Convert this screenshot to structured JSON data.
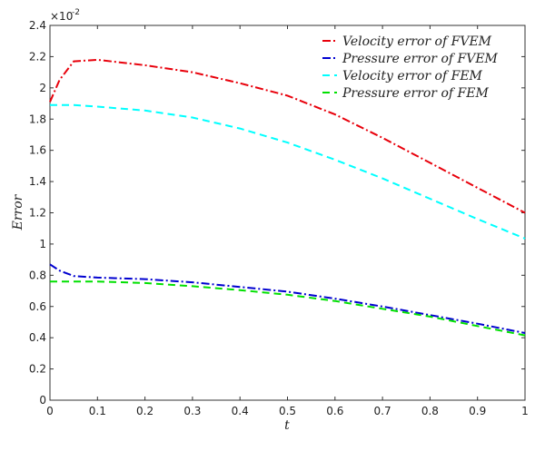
{
  "chart_data": {
    "type": "line",
    "y_label": "Error",
    "x_label": "t",
    "y_scale_base": "×10",
    "y_scale_exponent": "-2",
    "x": [
      0,
      0.02,
      0.05,
      0.1,
      0.2,
      0.3,
      0.4,
      0.5,
      0.6,
      0.7,
      0.8,
      0.9,
      1
    ],
    "series": [
      {
        "name": "Velocity error of FVEM",
        "color": "#e8000b",
        "style": "dashdot",
        "values": [
          1.91,
          2.05,
          2.17,
          2.18,
          2.145,
          2.1,
          2.03,
          1.95,
          1.83,
          1.68,
          1.52,
          1.36,
          1.2
        ]
      },
      {
        "name": "Pressure error of FVEM",
        "color": "#0000d0",
        "style": "dashdot",
        "values": [
          0.87,
          0.83,
          0.795,
          0.785,
          0.775,
          0.755,
          0.725,
          0.695,
          0.65,
          0.6,
          0.545,
          0.49,
          0.43
        ]
      },
      {
        "name": "Velocity error of FEM",
        "color": "#00ffff",
        "style": "dashed",
        "values": [
          1.89,
          1.89,
          1.89,
          1.88,
          1.855,
          1.81,
          1.74,
          1.65,
          1.54,
          1.42,
          1.29,
          1.16,
          1.035
        ]
      },
      {
        "name": "Pressure error of FEM",
        "color": "#00e000",
        "style": "dashed",
        "values": [
          0.76,
          0.76,
          0.76,
          0.76,
          0.75,
          0.73,
          0.705,
          0.675,
          0.635,
          0.585,
          0.535,
          0.475,
          0.415
        ]
      }
    ],
    "xlim": [
      0,
      1
    ],
    "xticks": [
      0,
      0.1,
      0.2,
      0.3,
      0.4,
      0.5,
      0.6,
      0.7,
      0.8,
      0.9,
      1
    ],
    "ylim": [
      0,
      2.4
    ],
    "yticks": [
      0,
      0.2,
      0.4,
      0.6,
      0.8,
      1,
      1.2,
      1.4,
      1.6,
      1.8,
      2,
      2.2,
      2.4
    ],
    "legend": "upper right"
  }
}
